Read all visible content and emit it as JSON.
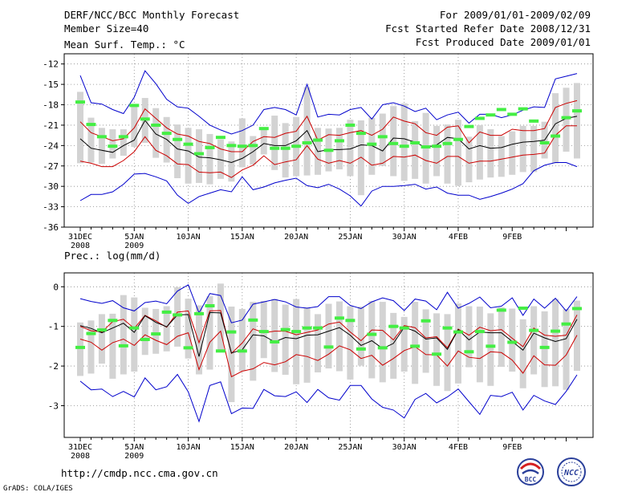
{
  "header": {
    "title": "DERF/NCC/BCC Monthly Forecast",
    "member_size": "Member Size=40",
    "forecast_range": "For 2009/01/01-2009/02/09",
    "started_refer": "Fcst Started Refer Date 2008/12/31",
    "produced": "Fcst Produced Date 2009/01/01"
  },
  "footer": {
    "url": "http://cmdp.ncc.cma.gov.cn",
    "grads_credit": "GrADS: COLA/IGES",
    "logo_bcc": "BCC",
    "logo_ncc": "NCC"
  },
  "colors": {
    "envelope": "#0000cc",
    "quartile": "#cc0000",
    "median": "#000000",
    "box": "#d3d3d3",
    "mean_marker": "#44ee44"
  },
  "chart_data": [
    {
      "type": "line",
      "title": "Mean Surf. Temp.: °C",
      "x_tick_labels": [
        "31DEC",
        "5JAN",
        "10JAN",
        "15JAN",
        "20JAN",
        "25JAN",
        "30JAN",
        "4FEB",
        "9FEB"
      ],
      "x_tick_sublabels": [
        "2008",
        "2009",
        "",
        "",
        "",
        "",
        "",
        "",
        ""
      ],
      "y_ticks": [
        "-12",
        "-15",
        "-18",
        "-21",
        "-24",
        "-27",
        "-30",
        "-33",
        "-36"
      ],
      "ylim": [
        -36,
        -10.5
      ],
      "grid": true,
      "series": [
        {
          "name": "max",
          "values": [
            -13.7,
            -17.7,
            -17.9,
            -18.7,
            -19.3,
            -16.9,
            -13.0,
            -14.9,
            -17.2,
            -18.3,
            -18.5,
            -19.7,
            -21.0,
            -21.7,
            -22.3,
            -21.8,
            -21.0,
            -18.7,
            -18.4,
            -18.7,
            -19.5,
            -15.0,
            -19.8,
            -19.4,
            -19.5,
            -18.7,
            -18.4,
            -20.1,
            -18.0,
            -17.7,
            -18.2,
            -19.0,
            -18.5,
            -20.2,
            -19.5,
            -19.1,
            -20.7,
            -19.4,
            -19.4,
            -19.9,
            -19.5,
            -18.8,
            -18.3,
            -18.4,
            -14.2,
            -13.8,
            -13.4
          ]
        },
        {
          "name": "q75",
          "values": [
            -20.5,
            -22.1,
            -22.7,
            -23.3,
            -23.0,
            -21.4,
            -18.6,
            -20.0,
            -21.4,
            -22.3,
            -22.6,
            -23.4,
            -23.7,
            -24.5,
            -24.9,
            -24.9,
            -23.4,
            -22.7,
            -22.8,
            -22.2,
            -21.9,
            -19.7,
            -23.2,
            -22.4,
            -22.5,
            -22.1,
            -21.8,
            -22.5,
            -21.6,
            -19.8,
            -20.4,
            -20.8,
            -22.1,
            -22.5,
            -21.3,
            -21.1,
            -23.6,
            -22.0,
            -22.5,
            -22.5,
            -21.6,
            -21.8,
            -21.8,
            -21.5,
            -18.4,
            -17.8,
            -17.4
          ]
        },
        {
          "name": "median",
          "values": [
            -23.0,
            -24.4,
            -24.7,
            -25.0,
            -24.0,
            -23.2,
            -20.3,
            -22.3,
            -23.1,
            -24.5,
            -24.8,
            -25.7,
            -25.8,
            -26.1,
            -26.5,
            -25.9,
            -24.9,
            -23.7,
            -24.0,
            -24.0,
            -23.3,
            -21.8,
            -24.9,
            -24.6,
            -24.6,
            -24.5,
            -23.9,
            -24.0,
            -24.8,
            -22.9,
            -23.0,
            -23.5,
            -24.3,
            -23.9,
            -22.8,
            -23.0,
            -24.5,
            -24.0,
            -24.4,
            -24.3,
            -23.8,
            -23.5,
            -23.4,
            -23.2,
            -20.8,
            -20.0,
            -19.7
          ]
        },
        {
          "name": "q25",
          "values": [
            -26.3,
            -26.6,
            -27.1,
            -27.1,
            -26.2,
            -24.9,
            -22.7,
            -24.7,
            -25.5,
            -26.7,
            -26.8,
            -27.9,
            -28.0,
            -27.9,
            -28.7,
            -27.6,
            -26.9,
            -25.5,
            -26.8,
            -26.4,
            -26.1,
            -24.0,
            -26.0,
            -26.6,
            -26.2,
            -26.6,
            -25.7,
            -26.9,
            -26.6,
            -25.6,
            -25.7,
            -25.4,
            -26.2,
            -26.6,
            -25.6,
            -25.6,
            -26.6,
            -26.3,
            -26.3,
            -26.0,
            -25.7,
            -25.4,
            -25.3,
            -25.1,
            -22.5,
            -21.1,
            -21.1
          ]
        },
        {
          "name": "min",
          "values": [
            -32.1,
            -31.2,
            -31.2,
            -30.8,
            -29.7,
            -28.2,
            -28.1,
            -28.6,
            -29.2,
            -31.3,
            -32.5,
            -31.5,
            -31.0,
            -30.5,
            -30.8,
            -28.6,
            -30.5,
            -30.1,
            -29.5,
            -29.1,
            -28.8,
            -29.9,
            -30.2,
            -29.7,
            -30.4,
            -31.4,
            -32.9,
            -30.7,
            -30.0,
            -30.0,
            -29.9,
            -29.7,
            -30.4,
            -30.1,
            -31.0,
            -31.3,
            -31.3,
            -31.9,
            -31.5,
            -31.0,
            -30.4,
            -29.6,
            -27.7,
            -26.9,
            -26.5,
            -26.5,
            -27.1
          ]
        },
        {
          "name": "mean",
          "values": [
            -17.6,
            -20.9,
            -22.7,
            -24.1,
            -22.7,
            -18.1,
            -20.1,
            -21.0,
            -22.2,
            -23.1,
            -23.8,
            -25.2,
            -24.3,
            -22.8,
            -24.0,
            -24.1,
            -24.0,
            -21.5,
            -24.4,
            -24.4,
            -24.1,
            -23.6,
            -23.2,
            -24.7,
            -23.3,
            -21.0,
            -22.2,
            -23.8,
            -22.7,
            -23.7,
            -24.1,
            -23.6,
            -24.2,
            -24.1,
            -23.7,
            -23.1,
            -21.2,
            -20.0,
            -19.5,
            -18.7,
            -19.4,
            -18.6,
            -20.4,
            -23.6,
            -22.6,
            -19.9,
            -18.9
          ]
        }
      ],
      "box_low": [
        -26.6,
        -26.5,
        -26.7,
        -25.9,
        -25.5,
        -24.2,
        -23.6,
        -25.8,
        -26.5,
        -28.8,
        -29.6,
        -29.5,
        -29.7,
        -28.9,
        -29.3,
        -27.2,
        -26.8,
        -25.3,
        -27.6,
        -28.7,
        -28.5,
        -28.4,
        -28.3,
        -27.8,
        -27.5,
        -28.5,
        -31.3,
        -28.3,
        -27.0,
        -28.5,
        -29.2,
        -28.9,
        -29.6,
        -28.5,
        -29.6,
        -29.9,
        -29.4,
        -29.0,
        -28.7,
        -28.6,
        -28.3,
        -27.9,
        -27.9,
        -25.9,
        -26.6,
        -24.9,
        -25.9
      ],
      "box_high": [
        -16.1,
        -19.9,
        -21.4,
        -21.6,
        -21.6,
        -18.0,
        -17.0,
        -18.5,
        -19.8,
        -20.9,
        -21.4,
        -21.6,
        -22.3,
        -23.1,
        -23.4,
        -20.0,
        -22.6,
        -21.5,
        -19.6,
        -20.7,
        -19.8,
        -15.4,
        -21.4,
        -21.5,
        -21.4,
        -20.2,
        -20.3,
        -19.9,
        -19.3,
        -18.2,
        -17.8,
        -20.4,
        -19.2,
        -21.1,
        -20.9,
        -20.2,
        -22.7,
        -21.0,
        -21.6,
        -22.6,
        -21.9,
        -21.1,
        -21.1,
        -20.5,
        -16.3,
        -15.5,
        -14.8
      ]
    },
    {
      "type": "line",
      "title": "Prec.: log(mm/d)",
      "x_tick_labels": [
        "31DEC",
        "5JAN",
        "10JAN",
        "15JAN",
        "20JAN",
        "25JAN",
        "30JAN",
        "4FEB",
        "9FEB"
      ],
      "x_tick_sublabels": [
        "2008",
        "2009",
        "",
        "",
        "",
        "",
        "",
        "",
        ""
      ],
      "y_ticks": [
        "0",
        "-1",
        "-2",
        "-3"
      ],
      "ylim": [
        -3.8,
        0.35
      ],
      "grid": true,
      "series": [
        {
          "name": "max",
          "values": [
            -0.3,
            -0.37,
            -0.42,
            -0.35,
            -0.53,
            -0.61,
            -0.4,
            -0.36,
            -0.43,
            -0.11,
            0.05,
            -0.66,
            -0.17,
            -0.22,
            -0.91,
            -0.84,
            -0.44,
            -0.38,
            -0.32,
            -0.38,
            -0.51,
            -0.54,
            -0.5,
            -0.25,
            -0.25,
            -0.47,
            -0.55,
            -0.38,
            -0.28,
            -0.35,
            -0.6,
            -0.31,
            -0.36,
            -0.58,
            -0.14,
            -0.54,
            -0.42,
            -0.26,
            -0.53,
            -0.49,
            -0.28,
            -0.72,
            -0.31,
            -0.54,
            -0.29,
            -0.61,
            -0.25
          ]
        },
        {
          "name": "q75",
          "values": [
            -1.0,
            -1.11,
            -1.14,
            -0.88,
            -0.82,
            -1.05,
            -0.72,
            -0.86,
            -1.02,
            -0.64,
            -0.61,
            -1.41,
            -0.61,
            -0.6,
            -1.68,
            -1.42,
            -1.06,
            -1.16,
            -1.12,
            -1.12,
            -1.21,
            -1.15,
            -1.09,
            -0.94,
            -0.89,
            -1.14,
            -1.36,
            -1.09,
            -1.1,
            -1.34,
            -0.98,
            -1.03,
            -1.29,
            -1.26,
            -1.54,
            -1.07,
            -1.22,
            -1.02,
            -1.11,
            -1.08,
            -1.3,
            -1.51,
            -1.04,
            -1.22,
            -1.25,
            -1.22,
            -0.71
          ]
        },
        {
          "name": "median",
          "values": [
            -0.98,
            -1.05,
            -1.16,
            -1.04,
            -0.92,
            -1.15,
            -0.73,
            -0.9,
            -1.01,
            -0.71,
            -0.7,
            -1.76,
            -0.65,
            -0.66,
            -1.67,
            -1.59,
            -1.21,
            -1.24,
            -1.39,
            -1.28,
            -1.31,
            -1.22,
            -1.21,
            -1.12,
            -1.03,
            -1.22,
            -1.48,
            -1.36,
            -1.56,
            -1.43,
            -1.02,
            -1.12,
            -1.32,
            -1.29,
            -1.58,
            -1.08,
            -1.34,
            -1.14,
            -1.16,
            -1.16,
            -1.38,
            -1.6,
            -1.17,
            -1.29,
            -1.38,
            -1.31,
            -0.82
          ]
        },
        {
          "name": "q25",
          "values": [
            -1.32,
            -1.4,
            -1.6,
            -1.41,
            -1.32,
            -1.48,
            -1.21,
            -1.35,
            -1.46,
            -1.25,
            -1.16,
            -2.09,
            -1.4,
            -1.12,
            -2.27,
            -2.13,
            -2.07,
            -1.91,
            -1.97,
            -1.89,
            -1.71,
            -1.76,
            -1.86,
            -1.7,
            -1.49,
            -1.59,
            -1.81,
            -1.73,
            -1.98,
            -1.81,
            -1.61,
            -1.51,
            -1.71,
            -1.72,
            -2.0,
            -1.62,
            -1.78,
            -1.81,
            -1.64,
            -1.66,
            -1.85,
            -2.18,
            -1.74,
            -1.97,
            -1.98,
            -1.72,
            -1.22
          ]
        },
        {
          "name": "min",
          "values": [
            -2.38,
            -2.6,
            -2.58,
            -2.77,
            -2.64,
            -2.78,
            -2.3,
            -2.6,
            -2.52,
            -2.21,
            -2.65,
            -3.4,
            -2.49,
            -2.4,
            -3.2,
            -3.06,
            -3.07,
            -2.59,
            -2.75,
            -2.77,
            -2.65,
            -2.92,
            -2.59,
            -2.8,
            -2.86,
            -2.49,
            -2.49,
            -2.83,
            -3.04,
            -3.11,
            -3.31,
            -2.84,
            -2.69,
            -2.93,
            -2.78,
            -2.58,
            -2.9,
            -3.22,
            -2.74,
            -2.77,
            -2.66,
            -3.11,
            -2.74,
            -2.88,
            -2.97,
            -2.64,
            -2.22
          ]
        },
        {
          "name": "mean",
          "values": [
            -1.53,
            -1.18,
            -1.09,
            -0.85,
            -1.49,
            -1.04,
            -1.33,
            -1.19,
            -0.64,
            -0.71,
            -1.54,
            -0.68,
            -0.48,
            -1.62,
            -1.14,
            -1.62,
            -0.84,
            -1.13,
            -1.39,
            -1.08,
            -1.13,
            -1.04,
            -1.04,
            -1.52,
            -0.79,
            -0.85,
            -1.57,
            -1.2,
            -1.54,
            -1.0,
            -1.04,
            -1.5,
            -0.86,
            -1.7,
            -1.04,
            -1.14,
            -1.64,
            -1.13,
            -1.5,
            -0.59,
            -1.4,
            -0.54,
            -1.1,
            -1.53,
            -1.12,
            -0.94,
            -0.55
          ]
        }
      ],
      "box_low": [
        -2.25,
        -2.19,
        -1.94,
        -2.32,
        -2.21,
        -2.14,
        -1.72,
        -1.69,
        -1.63,
        -1.51,
        -1.81,
        -2.21,
        -2.09,
        -1.62,
        -2.91,
        -2.13,
        -2.37,
        -1.8,
        -2.15,
        -2.22,
        -2.46,
        -2.42,
        -2.16,
        -2.06,
        -2.13,
        -2.34,
        -1.99,
        -2.31,
        -2.41,
        -2.32,
        -2.14,
        -2.45,
        -2.17,
        -2.5,
        -2.63,
        -2.44,
        -2.03,
        -2.41,
        -2.5,
        -2.02,
        -2.14,
        -2.56,
        -2.21,
        -2.53,
        -2.51,
        -2.6,
        -2.12
      ],
      "box_high": [
        -0.9,
        -0.85,
        -0.69,
        -0.68,
        -0.21,
        -0.27,
        -0.53,
        -0.56,
        -0.49,
        -0.01,
        -0.3,
        -0.47,
        -0.24,
        0.08,
        -0.5,
        -0.56,
        -0.38,
        -0.36,
        -0.31,
        -0.45,
        -0.31,
        -0.52,
        -0.69,
        -0.43,
        -0.37,
        -0.49,
        -0.5,
        -0.36,
        -0.38,
        -0.66,
        -0.76,
        -0.38,
        -0.57,
        -0.67,
        -0.69,
        -0.42,
        -0.49,
        -0.5,
        -0.67,
        -0.52,
        -0.55,
        -0.82,
        -0.49,
        -0.62,
        -0.31,
        -0.56,
        -0.35
      ]
    }
  ]
}
